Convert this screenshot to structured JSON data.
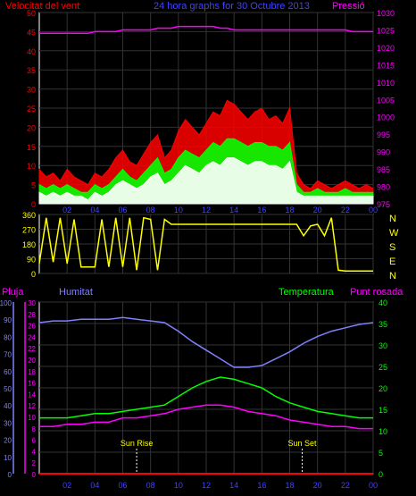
{
  "header": {
    "left_label": "Velocitat del vent",
    "title": "24 hora graphs for 30 Octubre 2013",
    "right_label": "Pressió"
  },
  "colors": {
    "red": "#ff0000",
    "blue": "#4040ff",
    "magenta": "#ff00ff",
    "yellow": "#ffff00",
    "green": "#00ff00",
    "lightblue": "#8080ff",
    "white": "#ffffff",
    "grid": "#333333"
  },
  "x_ticks": [
    "02",
    "04",
    "06",
    "08",
    "10",
    "12",
    "14",
    "16",
    "18",
    "20",
    "22",
    "00"
  ],
  "chart_data": [
    {
      "id": "wind",
      "type": "line",
      "title": "24 hora graphs for 30 Octubre 2013",
      "ylabel_left": "Velocitat del vent",
      "ylabel_right": "Pressió",
      "x_hours": [
        0,
        0.5,
        1,
        1.5,
        2,
        2.5,
        3,
        3.5,
        4,
        4.5,
        5,
        5.5,
        6,
        6.5,
        7,
        7.5,
        8,
        8.5,
        9,
        9.5,
        10,
        10.5,
        11,
        11.5,
        12,
        12.5,
        13,
        13.5,
        14,
        14.5,
        15,
        15.5,
        16,
        16.5,
        17,
        17.5,
        18,
        18.5,
        19,
        19.5,
        20,
        20.5,
        21,
        21.5,
        22,
        22.5,
        23,
        23.5,
        24
      ],
      "y_left_ticks": [
        0,
        5,
        10,
        15,
        20,
        25,
        30,
        35,
        40,
        45,
        50
      ],
      "y_right_ticks": [
        975,
        980,
        985,
        990,
        995,
        1000,
        1005,
        1010,
        1015,
        1020,
        1025,
        1030
      ],
      "ylim_left": [
        0,
        50
      ],
      "ylim_right": [
        975,
        1030
      ],
      "series": [
        {
          "name": "Velocitat del vent",
          "color": "#ff0000",
          "values": [
            9,
            7,
            8,
            6,
            9,
            7,
            6,
            5,
            8,
            7,
            9,
            12,
            14,
            11,
            10,
            13,
            16,
            18,
            12,
            14,
            19,
            22,
            20,
            18,
            21,
            24,
            23,
            27,
            26,
            24,
            22,
            24,
            25,
            22,
            23,
            21,
            25,
            8,
            5,
            4,
            6,
            5,
            4,
            5,
            6,
            5,
            4,
            5,
            4
          ]
        },
        {
          "name": "",
          "color": "#00ff00",
          "values": [
            5,
            4,
            5,
            4,
            5,
            4,
            3,
            3,
            5,
            4,
            5,
            7,
            9,
            7,
            6,
            8,
            10,
            12,
            8,
            9,
            12,
            14,
            13,
            12,
            14,
            16,
            15,
            17,
            17,
            16,
            15,
            16,
            16,
            15,
            15,
            14,
            16,
            5,
            3,
            3,
            4,
            3,
            3,
            3,
            4,
            3,
            3,
            3,
            3
          ]
        },
        {
          "name": "",
          "color": "#ffffff",
          "values": [
            3,
            2,
            3,
            2,
            3,
            2,
            2,
            1,
            3,
            2,
            3,
            5,
            6,
            5,
            4,
            5,
            7,
            8,
            5,
            6,
            8,
            10,
            9,
            8,
            10,
            11,
            10,
            12,
            12,
            11,
            10,
            11,
            11,
            10,
            10,
            9,
            11,
            3,
            2,
            2,
            2,
            2,
            2,
            2,
            2,
            2,
            2,
            2,
            2
          ]
        },
        {
          "name": "Pressió",
          "color": "#ff00ff",
          "axis": "right",
          "values": [
            1024,
            1024,
            1024,
            1024,
            1024,
            1024,
            1024,
            1024,
            1024.5,
            1024.5,
            1024.5,
            1024.5,
            1025,
            1025,
            1025,
            1025,
            1025,
            1025.5,
            1025.5,
            1025.5,
            1026,
            1026,
            1026,
            1026,
            1026,
            1026,
            1025.5,
            1025.5,
            1025,
            1025,
            1025,
            1025,
            1025,
            1025,
            1025,
            1025,
            1025,
            1025,
            1025,
            1025,
            1025,
            1025,
            1025,
            1025,
            1025,
            1024.5,
            1024.5,
            1024.5,
            1024.5
          ]
        }
      ]
    },
    {
      "id": "direction",
      "type": "line",
      "y_ticks": [
        0,
        90,
        180,
        270,
        360
      ],
      "ylim": [
        0,
        360
      ],
      "compass_labels": [
        "N",
        "W",
        "S",
        "E",
        "N"
      ],
      "x_hours": [
        0,
        0.5,
        1,
        1.5,
        2,
        2.5,
        3,
        3.5,
        4,
        4.5,
        5,
        5.5,
        6,
        6.5,
        7,
        7.5,
        8,
        8.5,
        9,
        9.5,
        10,
        10.5,
        11,
        11.5,
        12,
        12.5,
        13,
        13.5,
        14,
        14.5,
        15,
        15.5,
        16,
        16.5,
        17,
        17.5,
        18,
        18.5,
        19,
        19.5,
        20,
        20.5,
        21,
        21.5,
        22,
        22.5,
        23,
        23.5,
        24
      ],
      "series": [
        {
          "name": "",
          "color": "#ffff00",
          "values": [
            60,
            340,
            70,
            340,
            60,
            330,
            40,
            40,
            40,
            330,
            40,
            340,
            40,
            340,
            20,
            340,
            330,
            20,
            330,
            300,
            300,
            300,
            300,
            300,
            300,
            300,
            300,
            300,
            300,
            300,
            300,
            300,
            300,
            300,
            300,
            300,
            300,
            300,
            230,
            290,
            300,
            230,
            340,
            20,
            15,
            15,
            15,
            15,
            15
          ]
        }
      ]
    },
    {
      "id": "climate",
      "type": "line",
      "labels": {
        "rain": "Pluja",
        "humidity": "Humitat",
        "temperature": "Temperatura",
        "dewpoint": "Punt rosada"
      },
      "y_humidity_ticks": [
        0,
        10,
        20,
        30,
        40,
        50,
        60,
        70,
        80,
        90,
        100
      ],
      "y_rain_ticks": [
        0,
        2,
        4,
        6,
        8,
        10,
        12,
        14,
        16,
        18,
        20,
        22,
        24,
        26,
        28,
        30
      ],
      "y_temp_ticks": [
        0,
        5,
        10,
        15,
        20,
        25,
        30,
        35,
        40
      ],
      "annotations": [
        {
          "label": "Sun Rise",
          "hour": 7.0
        },
        {
          "label": "Sun Set",
          "hour": 18.9
        }
      ],
      "x_hours": [
        0,
        1,
        2,
        3,
        4,
        5,
        6,
        7,
        8,
        9,
        10,
        11,
        12,
        13,
        14,
        15,
        16,
        17,
        18,
        19,
        20,
        21,
        22,
        23,
        24
      ],
      "series": [
        {
          "name": "Humitat",
          "color": "#8080ff",
          "axis": "humidity",
          "values": [
            88,
            89,
            89,
            90,
            90,
            90,
            91,
            90,
            89,
            88,
            83,
            77,
            72,
            67,
            62,
            62,
            63,
            67,
            71,
            76,
            80,
            83,
            85,
            87,
            88
          ]
        },
        {
          "name": "Temperatura",
          "color": "#00ff00",
          "axis": "temp",
          "values": [
            13,
            13,
            13,
            13.5,
            14,
            14,
            14.5,
            15,
            15.5,
            16,
            18,
            20,
            21.5,
            22.5,
            22,
            21,
            20,
            18,
            16.5,
            15.5,
            14.5,
            14,
            13.5,
            13,
            13
          ]
        },
        {
          "name": "Punt rosada",
          "color": "#ff00ff",
          "axis": "temp",
          "values": [
            11,
            11,
            11.5,
            11.5,
            12,
            12,
            13,
            13,
            13.5,
            14,
            15,
            15.5,
            16,
            16,
            15.5,
            14.5,
            14,
            13.5,
            12.5,
            12,
            11.5,
            11,
            11,
            10.5,
            10.5
          ]
        },
        {
          "name": "Pluja",
          "color": "#ff0000",
          "axis": "rain",
          "values": [
            0,
            0,
            0,
            0,
            0,
            0,
            0,
            0,
            0,
            0,
            0,
            0,
            0,
            0,
            0,
            0,
            0,
            0,
            0,
            0,
            0,
            0,
            0,
            0,
            0
          ]
        }
      ]
    }
  ]
}
